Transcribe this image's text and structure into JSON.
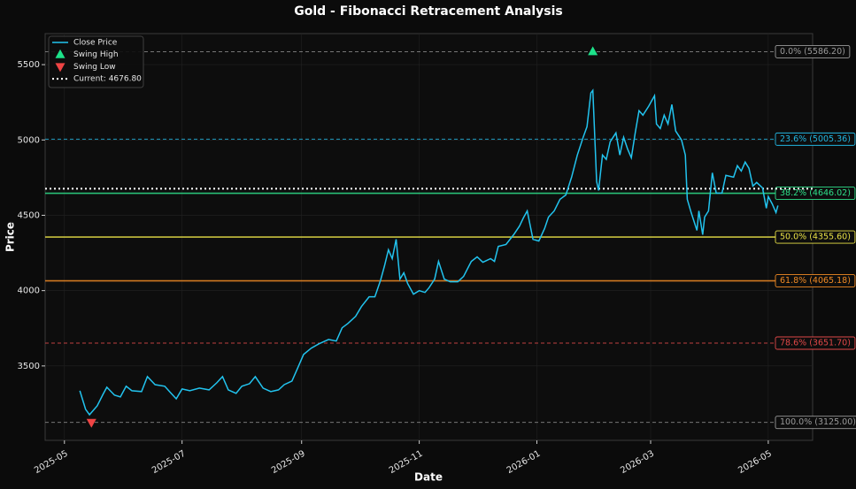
{
  "chart_data": {
    "type": "line",
    "title": "Gold - Fibonacci Retracement Analysis",
    "xlabel": "Date",
    "ylabel": "Price",
    "xlim": [
      "2025-04-21",
      "2026-05-24"
    ],
    "ylim": [
      3006,
      5706
    ],
    "xticks": [
      "2025-05",
      "2025-07",
      "2025-09",
      "2025-11",
      "2026-01",
      "2026-03",
      "2026-05"
    ],
    "yticks": [
      3500,
      4000,
      4500,
      5000,
      5500
    ],
    "grid": true,
    "legend": "upper left",
    "series": [
      {
        "name": "Close Price",
        "color": "#22c3ee",
        "x": [
          "2025-05-09",
          "2025-05-12",
          "2025-05-14",
          "2025-05-18",
          "2025-05-21",
          "2025-05-23",
          "2025-05-27",
          "2025-05-30",
          "2025-06-02",
          "2025-06-05",
          "2025-06-10",
          "2025-06-13",
          "2025-06-17",
          "2025-06-22",
          "2025-06-25",
          "2025-06-28",
          "2025-07-01",
          "2025-07-05",
          "2025-07-10",
          "2025-07-15",
          "2025-07-19",
          "2025-07-22",
          "2025-07-25",
          "2025-07-29",
          "2025-08-01",
          "2025-08-05",
          "2025-08-08",
          "2025-08-12",
          "2025-08-16",
          "2025-08-20",
          "2025-08-23",
          "2025-08-27",
          "2025-08-30",
          "2025-09-02",
          "2025-09-06",
          "2025-09-10",
          "2025-09-15",
          "2025-09-19",
          "2025-09-22",
          "2025-09-25",
          "2025-09-29",
          "2025-10-02",
          "2025-10-06",
          "2025-10-09",
          "2025-10-12",
          "2025-10-14",
          "2025-10-16",
          "2025-10-18",
          "2025-10-20",
          "2025-10-22",
          "2025-10-24",
          "2025-10-26",
          "2025-10-29",
          "2025-11-01",
          "2025-11-04",
          "2025-11-06",
          "2025-11-09",
          "2025-11-11",
          "2025-11-14",
          "2025-11-17",
          "2025-11-21",
          "2025-11-24",
          "2025-11-28",
          "2025-12-01",
          "2025-12-04",
          "2025-12-08",
          "2025-12-10",
          "2025-12-12",
          "2025-12-16",
          "2025-12-20",
          "2025-12-23",
          "2025-12-25",
          "2025-12-27",
          "2025-12-30",
          "2026-01-02",
          "2026-01-05",
          "2026-01-07",
          "2026-01-10",
          "2026-01-13",
          "2026-01-16",
          "2026-01-19",
          "2026-01-22",
          "2026-01-25",
          "2026-01-27",
          "2026-01-29",
          "2026-01-30",
          "2026-02-01",
          "2026-02-02",
          "2026-02-04",
          "2026-02-06",
          "2026-02-08",
          "2026-02-11",
          "2026-02-13",
          "2026-02-15",
          "2026-02-17",
          "2026-02-19",
          "2026-02-21",
          "2026-02-23",
          "2026-02-25",
          "2026-02-28",
          "2026-03-03",
          "2026-03-04",
          "2026-03-06",
          "2026-03-08",
          "2026-03-10",
          "2026-03-12",
          "2026-03-14",
          "2026-03-17",
          "2026-03-19",
          "2026-03-20",
          "2026-03-22",
          "2026-03-25",
          "2026-03-26",
          "2026-03-28",
          "2026-03-29",
          "2026-03-31",
          "2026-04-02",
          "2026-04-04",
          "2026-04-07",
          "2026-04-09",
          "2026-04-13",
          "2026-04-15",
          "2026-04-17",
          "2026-04-19",
          "2026-04-21",
          "2026-04-23",
          "2026-04-25",
          "2026-04-28",
          "2026-04-30",
          "2026-05-01",
          "2026-05-03",
          "2026-05-05",
          "2026-05-06"
        ],
        "values": [
          3335,
          3212,
          3176,
          3235,
          3312,
          3359,
          3306,
          3294,
          3365,
          3335,
          3330,
          3429,
          3376,
          3365,
          3323,
          3282,
          3347,
          3335,
          3353,
          3341,
          3388,
          3429,
          3341,
          3318,
          3365,
          3382,
          3429,
          3353,
          3330,
          3341,
          3376,
          3400,
          3488,
          3576,
          3618,
          3647,
          3676,
          3665,
          3753,
          3782,
          3829,
          3894,
          3959,
          3959,
          4071,
          4165,
          4271,
          4212,
          4341,
          4076,
          4118,
          4047,
          3976,
          4000,
          3988,
          4018,
          4076,
          4194,
          4076,
          4059,
          4059,
          4094,
          4194,
          4224,
          4188,
          4212,
          4194,
          4294,
          4306,
          4371,
          4429,
          4482,
          4529,
          4341,
          4329,
          4412,
          4488,
          4529,
          4606,
          4635,
          4753,
          4900,
          5018,
          5088,
          5312,
          5329,
          4724,
          4665,
          4900,
          4871,
          4988,
          5047,
          4900,
          5018,
          4941,
          4882,
          5047,
          5194,
          5165,
          5224,
          5294,
          5106,
          5076,
          5165,
          5106,
          5235,
          5059,
          5000,
          4900,
          4606,
          4518,
          4400,
          4529,
          4371,
          4488,
          4529,
          4782,
          4647,
          4647,
          4765,
          4753,
          4829,
          4794,
          4853,
          4812,
          4694,
          4718,
          4682,
          4547,
          4624,
          4576,
          4518,
          4565
        ]
      }
    ],
    "swing_high": {
      "name": "Swing High",
      "x": "2026-01-30",
      "value": 5586.2,
      "color": "#1de28a"
    },
    "swing_low": {
      "name": "Swing Low",
      "x": "2025-05-15",
      "value": 3125,
      "color": "#ef4444"
    },
    "current": {
      "name": "Current: 4676.80",
      "value": 4676.8,
      "color": "#ffffff"
    },
    "levels": [
      {
        "value": 5586.2,
        "label": "0.0% (5586.20)",
        "color": "#9a9a9a",
        "style": "dashed"
      },
      {
        "value": 5005.36,
        "label": "23.6% (5005.36)",
        "color": "#22b5e0",
        "style": "dashed"
      },
      {
        "value": 4646.02,
        "label": "38.2% (4646.02)",
        "color": "#2ee08a",
        "style": "solid"
      },
      {
        "value": 4355.6,
        "label": "50.0% (4355.60)",
        "color": "#e8e046",
        "style": "solid"
      },
      {
        "value": 4065.18,
        "label": "61.8% (4065.18)",
        "color": "#f08a24",
        "style": "solid"
      },
      {
        "value": 3651.7,
        "label": "78.6% (3651.70)",
        "color": "#e04848",
        "style": "dashed"
      },
      {
        "value": 3125,
        "label": "100.0% (3125.00)",
        "color": "#9a9a9a",
        "style": "dashed"
      }
    ]
  }
}
